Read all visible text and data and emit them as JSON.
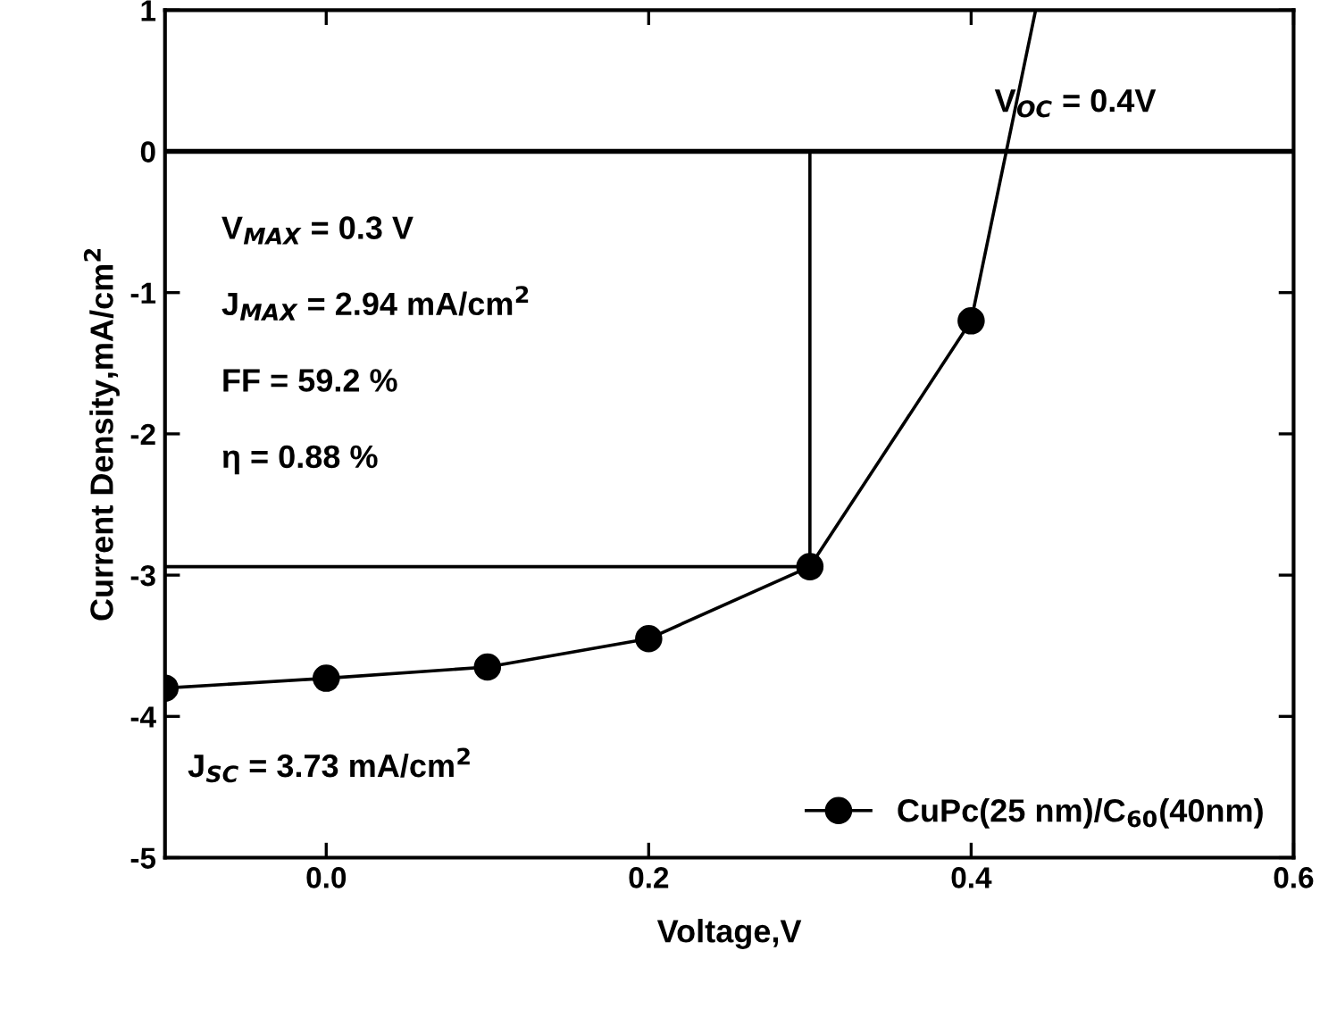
{
  "chart_data": {
    "type": "line",
    "xlabel": "Voltage,V",
    "ylabel": "Current Density,mA/cm$^{2}$",
    "series": [
      {
        "name": "CuPc(25 nm)/C$_{60}$(40nm)",
        "color": "#000000",
        "marker": "circle",
        "x": [
          -0.1,
          0.0,
          0.1,
          0.2,
          0.3,
          0.4
        ],
        "values": [
          -3.8,
          -3.73,
          -3.65,
          -3.45,
          -2.94,
          -1.2
        ]
      },
      {
        "color": "#000000",
        "marker": "none",
        "x": [
          0.4,
          0.44
        ],
        "values": [
          -1.2,
          1
        ]
      },
      {
        "color": "#000000",
        "marker": "none",
        "x": [
          -0.1,
          0.3,
          0.3
        ],
        "values": [
          -2.94,
          -2.94,
          0
        ]
      }
    ],
    "ref_lines": [
      {
        "axis": "y",
        "value": 0,
        "color": "#000000"
      }
    ],
    "annotations": [
      "V$_{MAX}$ = 0.3 V",
      "J$_{MAX}$ = 2.94 mA/cm$^{2}$",
      "FF = 59.2 %",
      "η = 0.88 %",
      "V$_{OC}$ = 0.4V",
      "J$_{SC}$ = 3.73 mA/cm$^{2}$"
    ],
    "xlim": [
      -0.1,
      0.6
    ],
    "xticks": [
      {
        "value": 0,
        "label": "0.0"
      },
      0.2,
      0.4,
      0.6
    ],
    "ylim": [
      -5,
      1
    ],
    "yticks": [
      -5,
      -4,
      -3,
      -2,
      -1,
      0,
      1
    ],
    "legend": "bottom right",
    "grid": false
  }
}
